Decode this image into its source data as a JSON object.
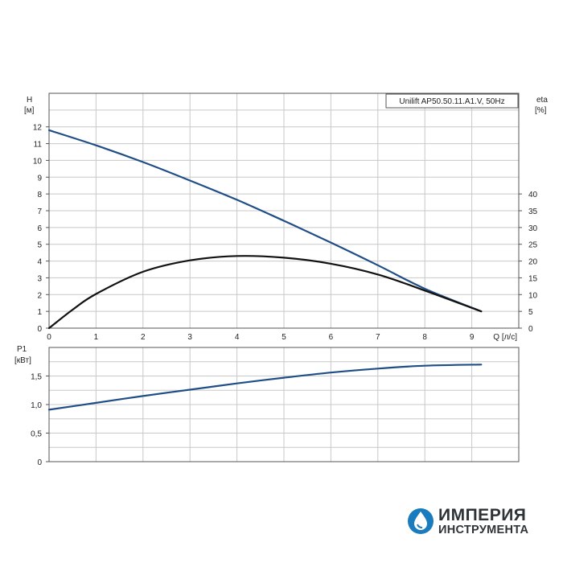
{
  "chart_data": [
    {
      "type": "line",
      "title": "Unilift AP50.50.11.A1.V, 50Hz",
      "xlabel": "Q [л/с]",
      "ylabel_left": [
        "H",
        "[м]"
      ],
      "ylabel_right": [
        "eta",
        "[%]"
      ],
      "xlim": [
        0,
        10
      ],
      "ylim_left": [
        0,
        14
      ],
      "ylim_right": [
        0,
        70
      ],
      "x_ticks": [
        "0",
        "1",
        "2",
        "3",
        "4",
        "5",
        "6",
        "7",
        "8",
        "9"
      ],
      "y_left_ticks": [
        "0",
        "1",
        "2",
        "3",
        "4",
        "5",
        "6",
        "7",
        "8",
        "9",
        "10",
        "11",
        "12"
      ],
      "y_right_ticks": [
        "0",
        "5",
        "10",
        "15",
        "20",
        "25",
        "30",
        "35",
        "40"
      ],
      "grid": true,
      "series": [
        {
          "color": "#1f4e86",
          "axis": "left",
          "points": [
            [
              0,
              11.8
            ],
            [
              1,
              10.9
            ],
            [
              2,
              9.9
            ],
            [
              3,
              8.8
            ],
            [
              4,
              7.65
            ],
            [
              5,
              6.4
            ],
            [
              6,
              5.1
            ],
            [
              7,
              3.75
            ],
            [
              8,
              2.35
            ],
            [
              9.2,
              1.0
            ]
          ]
        },
        {
          "color": "#111111",
          "axis": "right",
          "points": [
            [
              0,
              0
            ],
            [
              0.5,
              5.5
            ],
            [
              1,
              10.2
            ],
            [
              2,
              16.8
            ],
            [
              3,
              20.2
            ],
            [
              4,
              21.5
            ],
            [
              5,
              21.0
            ],
            [
              6,
              19.2
            ],
            [
              7,
              16.0
            ],
            [
              8,
              11.2
            ],
            [
              9.2,
              5.0
            ]
          ]
        }
      ]
    },
    {
      "type": "line",
      "title": "",
      "xlabel": "",
      "ylabel_left": [
        "P1",
        "[кВт]"
      ],
      "xlim": [
        0,
        10
      ],
      "ylim_left": [
        0,
        2
      ],
      "y_left_ticks": [
        "0",
        "0,5",
        "1,0",
        "1,5"
      ],
      "grid": true,
      "series": [
        {
          "color": "#1f4e86",
          "axis": "left",
          "points": [
            [
              0,
              0.91
            ],
            [
              1,
              1.03
            ],
            [
              2,
              1.15
            ],
            [
              3,
              1.26
            ],
            [
              4,
              1.37
            ],
            [
              5,
              1.47
            ],
            [
              6,
              1.56
            ],
            [
              7,
              1.63
            ],
            [
              8,
              1.68
            ],
            [
              9.2,
              1.7
            ]
          ]
        }
      ]
    }
  ],
  "brand": {
    "line1": "ИМПЕРИЯ",
    "line2": "ИНСТРУМЕНТА",
    "color": "#1a7bbd"
  }
}
